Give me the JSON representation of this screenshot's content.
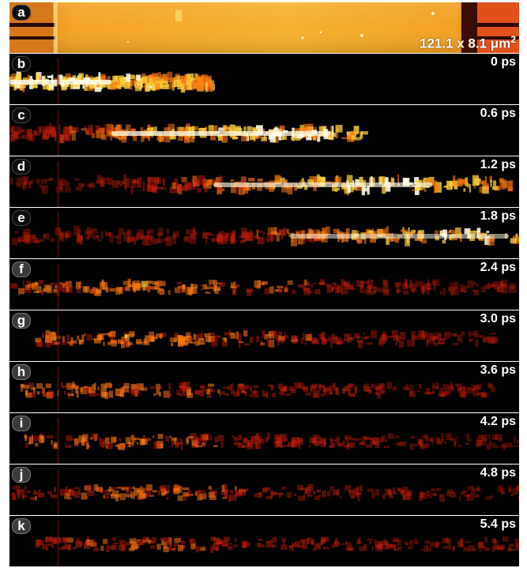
{
  "panels": [
    {
      "id": "a",
      "label": "a",
      "kind": "topography",
      "scale_text": "121.1 x 8.1 μm",
      "scale_exp": "2"
    },
    {
      "id": "b",
      "label": "b",
      "time": "0 ps",
      "stage": 0
    },
    {
      "id": "c",
      "label": "c",
      "time": "0.6 ps",
      "stage": 1
    },
    {
      "id": "d",
      "label": "d",
      "time": "1.2 ps",
      "stage": 2
    },
    {
      "id": "e",
      "label": "e",
      "time": "1.8 ps",
      "stage": 3
    },
    {
      "id": "f",
      "label": "f",
      "time": "2.4 ps",
      "stage": 4
    },
    {
      "id": "g",
      "label": "g",
      "time": "3.0 ps",
      "stage": 5
    },
    {
      "id": "h",
      "label": "h",
      "time": "3.6 ps",
      "stage": 6
    },
    {
      "id": "i",
      "label": "i",
      "time": "4.2 ps",
      "stage": 7
    },
    {
      "id": "j",
      "label": "j",
      "time": "4.8 ps",
      "stage": 8
    },
    {
      "id": "k",
      "label": "k",
      "time": "5.4 ps",
      "stage": 9
    }
  ],
  "colors": {
    "hot_white": "#fffbe6",
    "hot_yellow": "#ffd23a",
    "hot_orange": "#ff7a10",
    "hot_red": "#c81e0a",
    "background": "#000000",
    "topo_orange": "#f0a020",
    "topo_yellow": "#ffd24a"
  }
}
